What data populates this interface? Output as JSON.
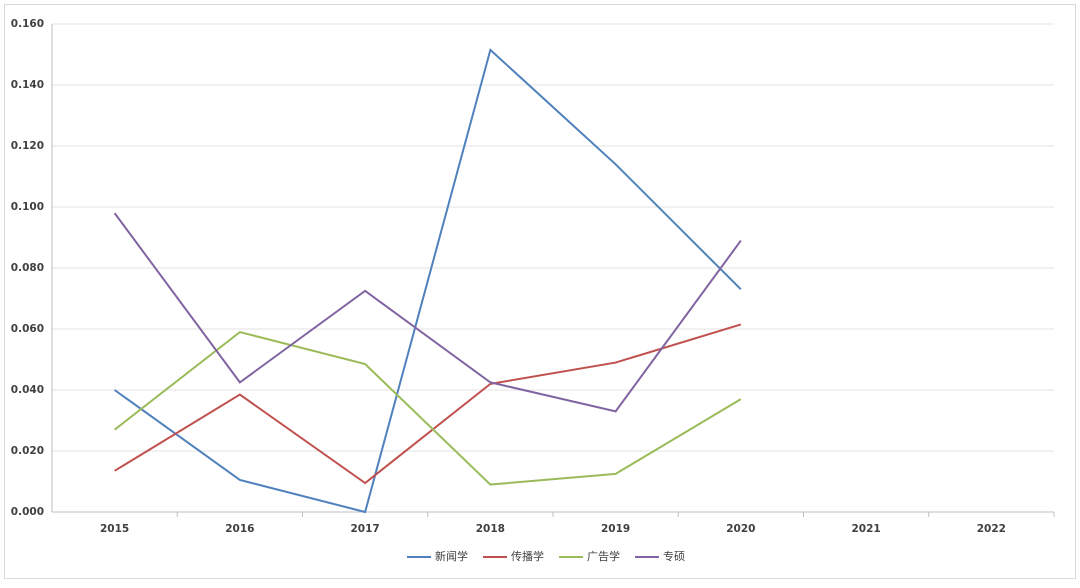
{
  "chart_data": {
    "type": "line",
    "categories": [
      "2015",
      "2016",
      "2017",
      "2018",
      "2019",
      "2020",
      "2021",
      "2022"
    ],
    "series": [
      {
        "name": "新闻学",
        "color": "#4f81bd",
        "values": [
          0.04,
          0.0105,
          0.0,
          0.1515,
          0.114,
          0.073,
          null,
          null
        ]
      },
      {
        "name": "传播学",
        "color": "#c0504d",
        "values": [
          0.0135,
          0.0385,
          0.0095,
          0.042,
          0.049,
          0.0615,
          null,
          null
        ]
      },
      {
        "name": "广告学",
        "color": "#9bbb59",
        "values": [
          0.027,
          0.059,
          0.0485,
          0.009,
          0.0125,
          0.037,
          null,
          null
        ]
      },
      {
        "name": "专硕",
        "color": "#8064a2",
        "values": [
          0.098,
          0.0425,
          0.0725,
          0.0425,
          0.033,
          0.089,
          null,
          null
        ]
      }
    ],
    "ylim": [
      0,
      0.16
    ],
    "yticks": [
      {
        "value": 0,
        "label": "0.000"
      },
      {
        "value": 0.02,
        "label": "0.020"
      },
      {
        "value": 0.04,
        "label": "0.040"
      },
      {
        "value": 0.06,
        "label": "0.060"
      },
      {
        "value": 0.08,
        "label": "0.080"
      },
      {
        "value": 0.1,
        "label": "0.100"
      },
      {
        "value": 0.12,
        "label": "0.120"
      },
      {
        "value": 0.14,
        "label": "0.140"
      },
      {
        "value": 0.16,
        "label": "0.160"
      }
    ],
    "grid": true,
    "legend": "bottom"
  }
}
